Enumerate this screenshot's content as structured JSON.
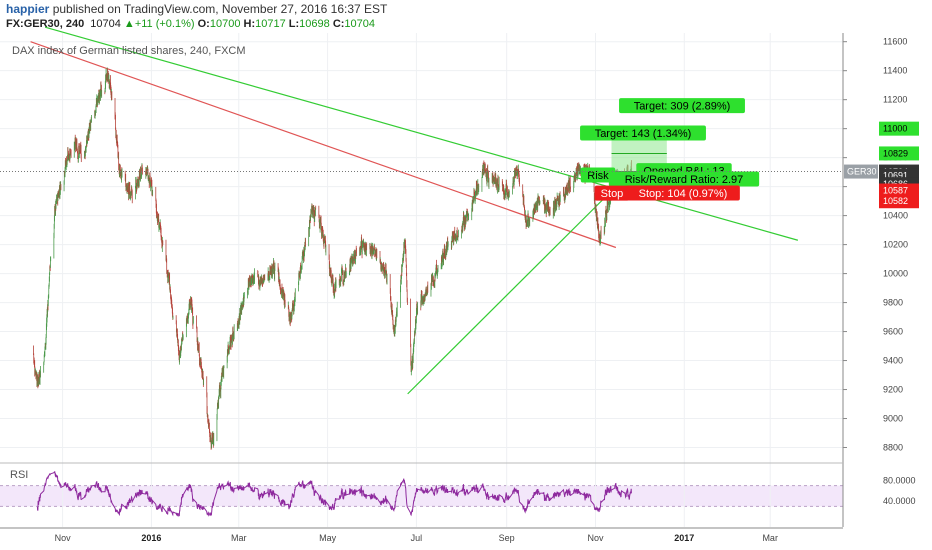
{
  "header": {
    "user": "happier",
    "published": "published on TradingView.com, November 27, 2016 16:37 EST",
    "symbol": "FX:GER30, 240",
    "last": "10704",
    "change": "+11 (+0.1%)",
    "o_label": "O:",
    "o": "10700",
    "h_label": "H:",
    "h": "10717",
    "l_label": "L:",
    "l": "10698",
    "c_label": "C:",
    "c": "10704"
  },
  "chart_data": [
    {
      "type": "candlestick",
      "title": "DAX index of German listed shares, 240, FXCM",
      "y_ticks": [
        "11600",
        "11400",
        "11200",
        "11000",
        "10800",
        "10600",
        "10400",
        "10200",
        "10000",
        "9800",
        "9600",
        "9400",
        "9200",
        "9000",
        "8800"
      ],
      "y_range": [
        8700,
        11660
      ],
      "x_ticks": [
        "Nov",
        "2016",
        "Mar",
        "May",
        "Jul",
        "Sep",
        "Nov",
        "2017",
        "Mar"
      ],
      "bold_x_ticks": [
        "2016",
        "2017"
      ],
      "price_path": [
        [
          "2015-10-10",
          9500
        ],
        [
          "2015-10-15",
          9250
        ],
        [
          "2015-10-20",
          9500
        ],
        [
          "2015-10-25",
          10350
        ],
        [
          "2015-11-01",
          10700
        ],
        [
          "2015-11-08",
          10900
        ],
        [
          "2015-11-15",
          10800
        ],
        [
          "2015-11-22",
          11100
        ],
        [
          "2015-11-28",
          11280
        ],
        [
          "2015-12-02",
          11370
        ],
        [
          "2015-12-06",
          11150
        ],
        [
          "2015-12-10",
          10700
        ],
        [
          "2015-12-18",
          10550
        ],
        [
          "2015-12-28",
          10750
        ],
        [
          "2016-01-05",
          10400
        ],
        [
          "2016-01-12",
          10000
        ],
        [
          "2016-01-20",
          9450
        ],
        [
          "2016-01-28",
          9800
        ],
        [
          "2016-02-05",
          9300
        ],
        [
          "2016-02-11",
          8800
        ],
        [
          "2016-02-20",
          9400
        ],
        [
          "2016-03-01",
          9700
        ],
        [
          "2016-03-08",
          9950
        ],
        [
          "2016-03-18",
          9950
        ],
        [
          "2016-03-25",
          10050
        ],
        [
          "2016-04-05",
          9700
        ],
        [
          "2016-04-12",
          10000
        ],
        [
          "2016-04-20",
          10450
        ],
        [
          "2016-04-27",
          10300
        ],
        [
          "2016-05-05",
          9900
        ],
        [
          "2016-05-15",
          10050
        ],
        [
          "2016-05-25",
          10200
        ],
        [
          "2016-06-02",
          10150
        ],
        [
          "2016-06-10",
          10000
        ],
        [
          "2016-06-16",
          9600
        ],
        [
          "2016-06-23",
          10250
        ],
        [
          "2016-06-27",
          9250
        ],
        [
          "2016-07-01",
          9750
        ],
        [
          "2016-07-10",
          9900
        ],
        [
          "2016-07-20",
          10150
        ],
        [
          "2016-07-27",
          10250
        ],
        [
          "2016-08-05",
          10400
        ],
        [
          "2016-08-15",
          10700
        ],
        [
          "2016-08-23",
          10650
        ],
        [
          "2016-09-01",
          10550
        ],
        [
          "2016-09-08",
          10700
        ],
        [
          "2016-09-15",
          10350
        ],
        [
          "2016-09-23",
          10500
        ],
        [
          "2016-10-01",
          10450
        ],
        [
          "2016-10-10",
          10550
        ],
        [
          "2016-10-20",
          10700
        ],
        [
          "2016-10-28",
          10700
        ],
        [
          "2016-11-04",
          10250
        ],
        [
          "2016-11-09",
          10450
        ],
        [
          "2016-11-15",
          10650
        ],
        [
          "2016-11-27",
          10704
        ]
      ],
      "trendlines": [
        {
          "color": "#e05555",
          "from": [
            "2015-10-10",
            11600
          ],
          "to": [
            "2016-11-15",
            10180
          ]
        },
        {
          "color": "#33cc33",
          "from": [
            "2015-10-20",
            11700
          ],
          "to": [
            "2017-03-20",
            10230
          ]
        },
        {
          "color": "#33cc33",
          "from": [
            "2016-06-25",
            9170
          ],
          "to": [
            "2016-11-15",
            10600
          ]
        }
      ],
      "position": {
        "entry": 10704,
        "target1": 10829,
        "target2": 11000,
        "stop": 10587,
        "from": "2016-11-12",
        "to": "2016-12-20"
      },
      "labels": {
        "target_2": "Target: 309 (2.89%)",
        "target_1": "Target: 143 (1.34%)",
        "opened_pnl": "Opened P&L: 13",
        "risk_reward": "Risk/Reward Ratio: 2.97",
        "stop": "Stop: 104 (0.97%)",
        "risk_prefix": "Risk",
        "stop_prefix": "Stop"
      },
      "price_badges": [
        {
          "text": "11000",
          "value": 11000,
          "bg": "#2ee02e",
          "fg": "#000"
        },
        {
          "text": "10829",
          "value": 10829,
          "bg": "#2ee02e",
          "fg": "#000"
        },
        {
          "text": "10704",
          "value": 10704,
          "bg": "#333333",
          "fg": "#fff"
        },
        {
          "text": "10691",
          "value": 10691,
          "bg": "#333333",
          "fg": "#fff"
        },
        {
          "text": "10686",
          "value": 10686,
          "bg": "#333333",
          "fg": "#fff"
        },
        {
          "text": "10587",
          "value": 10587,
          "bg": "#ee1c1c",
          "fg": "#fff"
        },
        {
          "text": "10582",
          "value": 10582,
          "bg": "#ee1c1c",
          "fg": "#fff"
        }
      ],
      "symbol_tag": "GER30"
    },
    {
      "type": "line",
      "title": "RSI",
      "y_ticks": [
        "80.0000",
        "40.0000"
      ],
      "y_range": [
        0,
        100
      ],
      "band": [
        30,
        70
      ],
      "color": "#8e2a9e"
    }
  ]
}
